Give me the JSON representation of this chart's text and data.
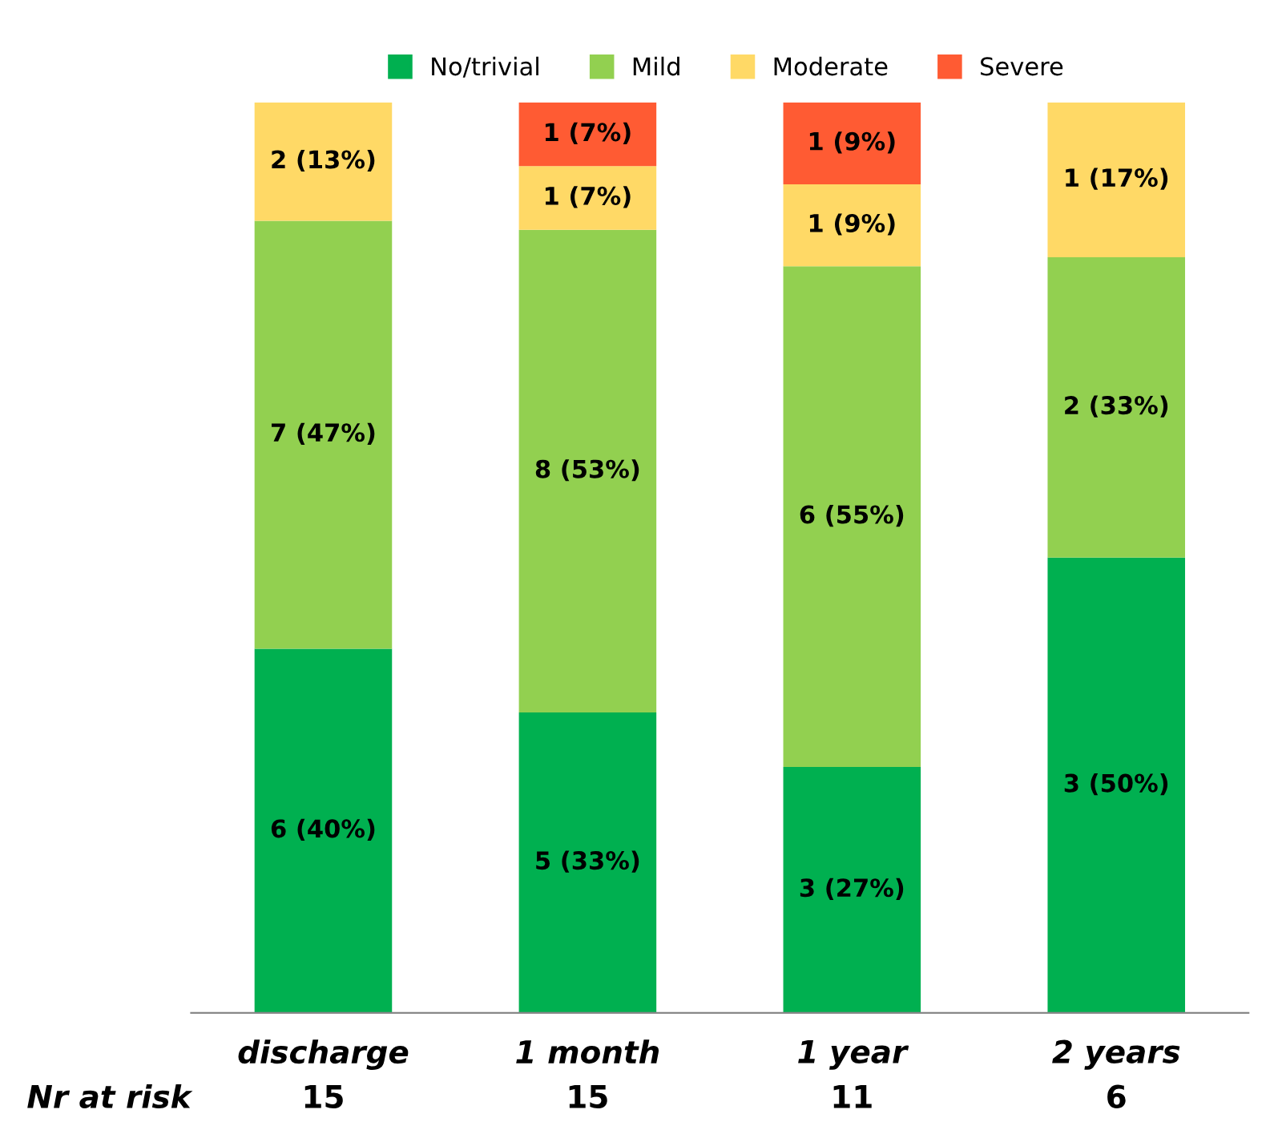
{
  "chart_data": {
    "type": "bar",
    "stacked": true,
    "categories": [
      "discharge",
      "1 month",
      "1 year",
      "2 years"
    ],
    "series": [
      {
        "name": "No/trivial",
        "color": "#00b050",
        "values": [
          40,
          33,
          27,
          50
        ],
        "value_labels": [
          "6 (40%)",
          "5 (33%)",
          "3 (27%)",
          "3 (50%)"
        ]
      },
      {
        "name": "Mild",
        "color": "#92d050",
        "values": [
          47,
          53,
          55,
          33
        ],
        "value_labels": [
          "7 (47%)",
          "8 (53%)",
          "6 (55%)",
          "2 (33%)"
        ]
      },
      {
        "name": "Moderate",
        "color": "#ffd966",
        "values": [
          13,
          7,
          9,
          17
        ],
        "value_labels": [
          "2 (13%)",
          "1 (7%)",
          "1 (9%)",
          "1 (17%)"
        ]
      },
      {
        "name": "Severe",
        "color": "#ff5b33",
        "values": [
          null,
          7,
          9,
          null
        ],
        "value_labels": [
          null,
          "1 (7%)",
          "1 (9%)",
          null
        ]
      }
    ],
    "legend": "top",
    "marker": "square",
    "grid": false,
    "annotations": [
      "Nr at risk",
      "15",
      "15",
      "11",
      "6"
    ]
  }
}
